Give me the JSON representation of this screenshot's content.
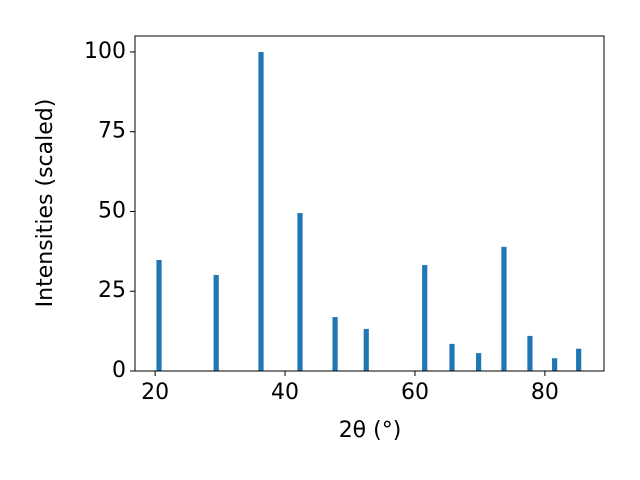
{
  "chart_data": {
    "type": "bar",
    "x_label": "2θ (°)",
    "y_label": "Intensities (scaled)",
    "x": [
      20.6,
      29.4,
      36.3,
      42.3,
      47.7,
      52.5,
      61.5,
      65.7,
      69.8,
      73.7,
      77.7,
      81.5,
      85.2
    ],
    "values": [
      34.8,
      30.1,
      100,
      49.5,
      16.9,
      13.2,
      33.2,
      8.5,
      5.6,
      38.9,
      11,
      4,
      7
    ],
    "color": "#1f77b4",
    "xlim": [
      16.9,
      89.1
    ],
    "ylim": [
      0,
      105
    ],
    "xticks": [
      20,
      40,
      60,
      80
    ],
    "yticks": [
      0,
      25,
      50,
      75,
      100
    ],
    "grid": false
  }
}
